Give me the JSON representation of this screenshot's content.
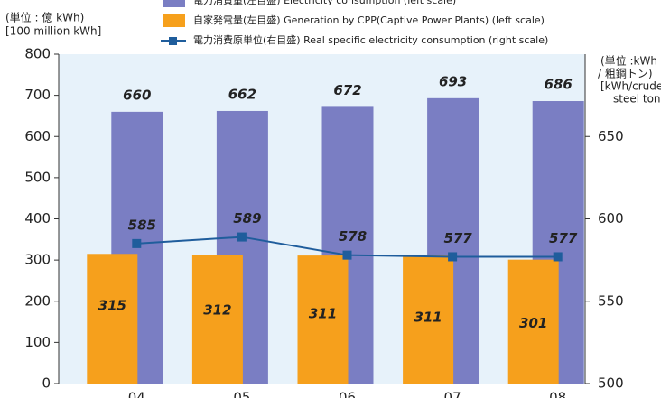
{
  "chart_data": {
    "type": "bar",
    "categories": [
      "04",
      "05",
      "06",
      "07",
      "08"
    ],
    "series": [
      {
        "name": "電力消費量(左目盛) Electricity consumption (left scale)",
        "color": "#7a7ec3",
        "values": [
          660,
          662,
          672,
          693,
          686
        ]
      },
      {
        "name": "自家発電量(左目盛) Generation by CPP(Captive Power Plants) (left scale)",
        "color": "#f6a01c",
        "values": [
          315,
          312,
          311,
          311,
          301
        ]
      },
      {
        "name": "電力消費原単位(右目盛) Real specific electricity consumption (right scale)",
        "color": "#1f5d9c",
        "type": "line",
        "axis": "y2",
        "values": [
          585,
          589,
          578,
          577,
          577
        ]
      }
    ],
    "y_label": [
      "(単位 : 億 kWh)",
      "[100 million kWh]"
    ],
    "y2_label": [
      "(単位 :kWh",
      "/ 粗鋼トン)",
      "[kWh/crude",
      "steel ton]"
    ],
    "ylim": [
      0,
      800
    ],
    "yticks": [
      0,
      100,
      200,
      300,
      400,
      500,
      600,
      700,
      800
    ],
    "y2lim": [
      500,
      700
    ],
    "y2ticks": [
      500,
      550,
      600,
      650
    ],
    "background": "#e7f2fa"
  }
}
